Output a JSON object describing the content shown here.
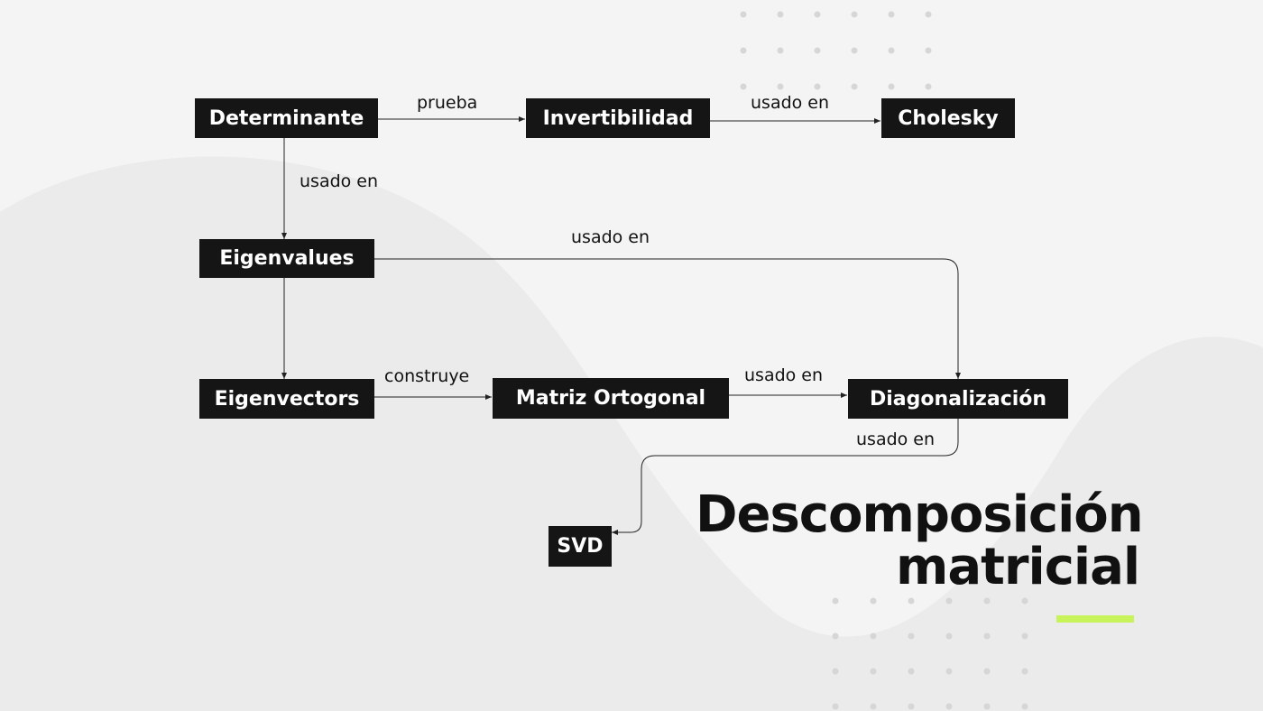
{
  "diagram": {
    "title_line1": "Descomposición",
    "title_line2": "matricial",
    "nodes": {
      "determinante": "Determinante",
      "invertibilidad": "Invertibilidad",
      "cholesky": "Cholesky",
      "eigenvalues": "Eigenvalues",
      "eigenvectors": "Eigenvectors",
      "matriz_ortogonal": "Matriz Ortogonal",
      "diagonalizacion": "Diagonalización",
      "svd": "SVD"
    },
    "edges": [
      {
        "from": "Determinante",
        "to": "Invertibilidad",
        "label": "prueba"
      },
      {
        "from": "Invertibilidad",
        "to": "Cholesky",
        "label": "usado en"
      },
      {
        "from": "Determinante",
        "to": "Eigenvalues",
        "label": "usado en"
      },
      {
        "from": "Eigenvalues",
        "to": "Diagonalización",
        "label": "usado en"
      },
      {
        "from": "Eigenvalues",
        "to": "Eigenvectors",
        "label": ""
      },
      {
        "from": "Eigenvectors",
        "to": "Matriz Ortogonal",
        "label": "construye"
      },
      {
        "from": "Matriz Ortogonal",
        "to": "Diagonalización",
        "label": "usado en"
      },
      {
        "from": "Diagonalización",
        "to": "SVD",
        "label": "usado en"
      }
    ]
  },
  "colors": {
    "background": "#f4f4f4",
    "wave": "#ebebeb",
    "node_fill": "#151515",
    "node_text": "#ffffff",
    "edge": "#222222",
    "accent": "#c8f35a",
    "dots": "#d6d6d6"
  }
}
